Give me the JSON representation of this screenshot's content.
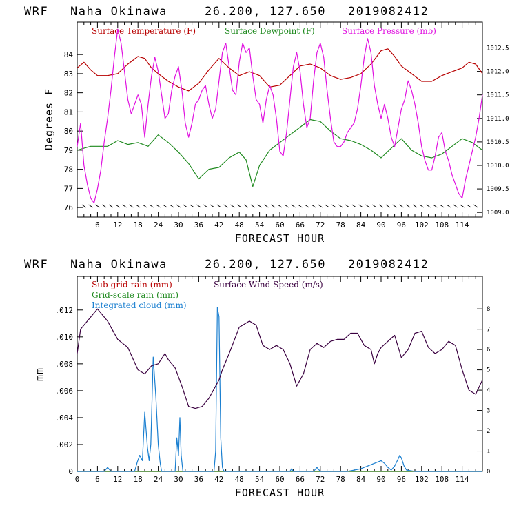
{
  "chart_data": [
    {
      "type": "line",
      "title": {
        "model": "WRF",
        "location": "Naha Okinawa",
        "coords": "26.200, 127.650",
        "run": "2019082412"
      },
      "xlabel": "FORECAST HOUR",
      "ylabel": "Degrees F",
      "xlim": [
        0,
        120
      ],
      "ylim": [
        75.5,
        85.7
      ],
      "y2lim": [
        1008.9,
        1013.05
      ],
      "xticks": [
        6,
        12,
        18,
        24,
        30,
        36,
        42,
        48,
        54,
        60,
        66,
        72,
        78,
        84,
        90,
        96,
        102,
        108,
        114
      ],
      "xtick_labels": [
        "6",
        "12",
        "18",
        "24",
        "30",
        "36",
        "42",
        "48",
        "54",
        "60",
        "66",
        "72",
        "78",
        "84",
        "90",
        "96",
        "102",
        "108",
        "114"
      ],
      "yticks": [
        76,
        77,
        78,
        79,
        80,
        81,
        82,
        83,
        84
      ],
      "ytick_labels": [
        "76",
        "77",
        "78",
        "79",
        "80",
        "81",
        "82",
        "83",
        "84"
      ],
      "y2ticks": [
        1009.0,
        1009.5,
        1010.0,
        1010.5,
        1011.0,
        1011.5,
        1012.0,
        1012.5
      ],
      "y2tick_labels": [
        "1009.0",
        "1009.5",
        "1010.0",
        "1010.5",
        "1011.0",
        "1011.5",
        "1012.0",
        "1012.5"
      ],
      "series": [
        {
          "name": "Surface Temperature (F)",
          "axis": "left",
          "color": "#b80000",
          "x": [
            0,
            2,
            4,
            6,
            9,
            12,
            15,
            18,
            20,
            22,
            24,
            27,
            30,
            33,
            36,
            39,
            42,
            45,
            48,
            51,
            54,
            57,
            60,
            63,
            66,
            69,
            72,
            75,
            78,
            81,
            84,
            87,
            90,
            92,
            94,
            96,
            99,
            102,
            105,
            108,
            111,
            114,
            116,
            118,
            120
          ],
          "y": [
            83.3,
            83.6,
            83.2,
            82.9,
            82.9,
            83.0,
            83.5,
            83.9,
            83.8,
            83.3,
            83.0,
            82.6,
            82.3,
            82.1,
            82.5,
            83.2,
            83.8,
            83.3,
            82.9,
            83.1,
            82.9,
            82.3,
            82.4,
            82.9,
            83.4,
            83.5,
            83.3,
            82.9,
            82.7,
            82.8,
            83.0,
            83.5,
            84.2,
            84.3,
            83.9,
            83.4,
            83.0,
            82.6,
            82.6,
            82.9,
            83.1,
            83.3,
            83.6,
            83.5,
            83.0
          ]
        },
        {
          "name": "Surface Dewpoint (F)",
          "axis": "left",
          "color": "#1f8a1f",
          "x": [
            0,
            2,
            4,
            6,
            9,
            12,
            15,
            18,
            21,
            24,
            27,
            30,
            33,
            36,
            39,
            42,
            45,
            48,
            50,
            52,
            54,
            57,
            60,
            63,
            66,
            69,
            72,
            75,
            78,
            81,
            84,
            87,
            90,
            93,
            96,
            99,
            102,
            105,
            108,
            111,
            114,
            117,
            120
          ],
          "y": [
            79.0,
            79.1,
            79.2,
            79.2,
            79.2,
            79.5,
            79.3,
            79.4,
            79.2,
            79.8,
            79.4,
            78.9,
            78.3,
            77.5,
            78.0,
            78.1,
            78.6,
            78.9,
            78.5,
            77.1,
            78.2,
            79.0,
            79.4,
            79.8,
            80.2,
            80.6,
            80.5,
            80.0,
            79.6,
            79.5,
            79.3,
            79.0,
            78.6,
            79.1,
            79.6,
            79.0,
            78.7,
            78.6,
            78.8,
            79.2,
            79.6,
            79.4,
            79.0
          ]
        },
        {
          "name": "Surface Pressure (mb)",
          "axis": "right",
          "color": "#e010e0",
          "x": [
            0,
            1,
            2,
            3,
            4,
            5,
            6,
            7,
            8,
            9,
            10,
            11,
            12,
            13,
            14,
            15,
            16,
            17,
            18,
            19,
            20,
            21,
            22,
            23,
            24,
            25,
            26,
            27,
            28,
            29,
            30,
            31,
            32,
            33,
            34,
            35,
            36,
            37,
            38,
            39,
            40,
            41,
            42,
            43,
            44,
            45,
            46,
            47,
            48,
            49,
            50,
            51,
            52,
            53,
            54,
            55,
            56,
            57,
            58,
            59,
            60,
            61,
            62,
            63,
            64,
            65,
            66,
            67,
            68,
            69,
            70,
            71,
            72,
            73,
            74,
            75,
            76,
            77,
            78,
            79,
            80,
            81,
            82,
            83,
            84,
            85,
            86,
            87,
            88,
            89,
            90,
            91,
            92,
            93,
            94,
            95,
            96,
            97,
            98,
            99,
            100,
            101,
            102,
            103,
            104,
            105,
            106,
            107,
            108,
            109,
            110,
            111,
            112,
            113,
            114,
            115,
            116,
            117,
            118,
            119,
            120
          ],
          "y": [
            1010.4,
            1010.9,
            1010.0,
            1009.6,
            1009.3,
            1009.2,
            1009.5,
            1009.9,
            1010.5,
            1011.0,
            1011.6,
            1012.3,
            1012.9,
            1012.6,
            1012.0,
            1011.4,
            1011.1,
            1011.3,
            1011.5,
            1011.3,
            1010.6,
            1011.3,
            1011.9,
            1012.3,
            1012.0,
            1011.5,
            1011.0,
            1011.1,
            1011.6,
            1011.9,
            1012.1,
            1011.6,
            1010.9,
            1010.6,
            1010.9,
            1011.3,
            1011.4,
            1011.6,
            1011.7,
            1011.3,
            1011.0,
            1011.2,
            1011.8,
            1012.4,
            1012.6,
            1012.1,
            1011.6,
            1011.5,
            1012.2,
            1012.6,
            1012.4,
            1012.5,
            1011.9,
            1011.4,
            1011.3,
            1010.9,
            1011.4,
            1011.7,
            1011.5,
            1011.0,
            1010.3,
            1010.2,
            1010.7,
            1011.4,
            1012.1,
            1012.4,
            1012.0,
            1011.3,
            1010.8,
            1011.0,
            1011.8,
            1012.4,
            1012.6,
            1012.3,
            1011.6,
            1011.0,
            1010.5,
            1010.4,
            1010.4,
            1010.5,
            1010.7,
            1010.8,
            1010.9,
            1011.2,
            1011.7,
            1012.3,
            1012.7,
            1012.4,
            1011.7,
            1011.3,
            1011.0,
            1011.3,
            1011.0,
            1010.6,
            1010.4,
            1010.8,
            1011.2,
            1011.4,
            1011.8,
            1011.6,
            1011.3,
            1010.9,
            1010.4,
            1010.1,
            1009.9,
            1009.9,
            1010.2,
            1010.6,
            1010.7,
            1010.3,
            1010.1,
            1009.8,
            1009.6,
            1009.4,
            1009.3,
            1009.7,
            1010.0,
            1010.3,
            1010.6,
            1011.0,
            1011.5
          ]
        }
      ],
      "wind_barbs": "calm / light wind barbs along bottom edge at every forecast hour"
    },
    {
      "type": "line",
      "title": {
        "model": "WRF",
        "location": "Naha Okinawa",
        "coords": "26.200, 127.650",
        "run": "2019082412"
      },
      "xlabel": "FORECAST HOUR",
      "ylabel": "mm",
      "xlim": [
        0,
        120
      ],
      "ylim": [
        0,
        0.0145
      ],
      "y2lim": [
        0,
        9.6
      ],
      "xticks": [
        0,
        6,
        12,
        18,
        24,
        30,
        36,
        42,
        48,
        54,
        60,
        66,
        72,
        78,
        84,
        90,
        96,
        102,
        108,
        114
      ],
      "xtick_labels": [
        "0",
        "6",
        "12",
        "18",
        "24",
        "30",
        "36",
        "42",
        "48",
        "54",
        "60",
        "66",
        "72",
        "78",
        "84",
        "90",
        "96",
        "102",
        "108",
        "114"
      ],
      "yticks": [
        0,
        0.002,
        0.004,
        0.006,
        0.008,
        0.01,
        0.012
      ],
      "ytick_labels": [
        "0",
        ".002",
        ".004",
        ".006",
        ".008",
        ".010",
        ".012"
      ],
      "y2ticks": [
        0,
        1,
        2,
        3,
        4,
        5,
        6,
        7,
        8
      ],
      "y2tick_labels": [
        "0",
        "1",
        "2",
        "3",
        "4",
        "5",
        "6",
        "7",
        "8"
      ],
      "series": [
        {
          "name": "Sub-grid rain (mm)",
          "axis": "left",
          "color": "#b80000",
          "x": [
            0,
            120
          ],
          "y": [
            0,
            0
          ]
        },
        {
          "name": "Grid-scale rain (mm)",
          "axis": "left",
          "color": "#1f8a1f",
          "x": [
            0,
            120
          ],
          "y": [
            0,
            0
          ]
        },
        {
          "name": "Integrated cloud (mm)",
          "axis": "left",
          "color": "#1a7fd0",
          "x": [
            0,
            8,
            9,
            10,
            17,
            17.8,
            18.5,
            19.3,
            20,
            20.8,
            21.3,
            21.8,
            22.5,
            23.3,
            24,
            24.6,
            25,
            29,
            29.5,
            30,
            30.4,
            30.8,
            31.3,
            32,
            40.5,
            41,
            41.5,
            42,
            42.5,
            43,
            43.5,
            44,
            63,
            63.5,
            64,
            70,
            71,
            72,
            80,
            84,
            86,
            88,
            90,
            91,
            92,
            93,
            94,
            95,
            95.5,
            96,
            96.8,
            97.5,
            100,
            120
          ],
          "y": [
            0,
            0,
            0.0003,
            0,
            0,
            0.0007,
            0.0012,
            0.0008,
            0.0044,
            0.0018,
            0.0008,
            0.002,
            0.0085,
            0.0055,
            0.002,
            0.0006,
            0,
            0,
            0.0025,
            0.0012,
            0.004,
            0.0012,
            0,
            0,
            0,
            0.0015,
            0.0122,
            0.0115,
            0.0025,
            0.0003,
            0,
            0,
            0,
            0.0002,
            0,
            0,
            0.0003,
            0,
            0,
            0.0002,
            0.0004,
            0.0006,
            0.0008,
            0.0006,
            0.0003,
            0.0001,
            0.0004,
            0.0009,
            0.0012,
            0.001,
            0.0004,
            0.0001,
            0,
            0
          ]
        },
        {
          "name": "Surface Wind Speed (m/s)",
          "axis": "right",
          "color": "#3a0040",
          "x": [
            0,
            1,
            3,
            6,
            9,
            12,
            15,
            18,
            20,
            22,
            24,
            26,
            27,
            29,
            31,
            33,
            35,
            37,
            39,
            41,
            42,
            43,
            45,
            48,
            51,
            53,
            55,
            57,
            59,
            61,
            63,
            65,
            67,
            69,
            71,
            73,
            75,
            77,
            79,
            81,
            83,
            85,
            87,
            88,
            89,
            90,
            92,
            94,
            96,
            98,
            100,
            102,
            104,
            106,
            108,
            110,
            112,
            114,
            116,
            118,
            120
          ],
          "y": [
            5.8,
            7.0,
            7.4,
            8.0,
            7.4,
            6.5,
            6.1,
            5.0,
            4.8,
            5.2,
            5.3,
            5.8,
            5.5,
            5.1,
            4.2,
            3.2,
            3.1,
            3.2,
            3.6,
            4.2,
            4.5,
            5.0,
            5.8,
            7.1,
            7.4,
            7.2,
            6.2,
            6.0,
            6.2,
            6.0,
            5.3,
            4.2,
            4.8,
            6.0,
            6.3,
            6.1,
            6.4,
            6.5,
            6.5,
            6.8,
            6.8,
            6.2,
            6.0,
            5.3,
            5.8,
            6.1,
            6.4,
            6.7,
            5.6,
            6.0,
            6.8,
            6.9,
            6.1,
            5.8,
            6.0,
            6.4,
            6.2,
            5.0,
            4.0,
            3.8,
            4.5
          ]
        }
      ]
    }
  ]
}
